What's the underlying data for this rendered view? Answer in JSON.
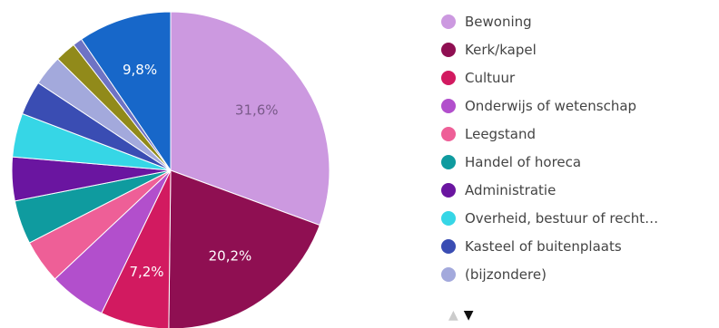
{
  "chart_data": {
    "type": "pie",
    "start_angle_deg": 0,
    "direction": "clockwise",
    "slices": [
      {
        "label": "Bewoning",
        "value": 31.6,
        "color": "#cc99e0",
        "data_label": "31,6%",
        "label_color": "#7a5a8a"
      },
      {
        "label": "Kerk/kapel",
        "value": 20.2,
        "color": "#8f0f52",
        "data_label": "20,2%",
        "label_color": "#ffffff"
      },
      {
        "label": "Cultuur",
        "value": 7.2,
        "color": "#d21a60",
        "data_label": "7,2%",
        "label_color": "#ffffff"
      },
      {
        "label": "Onderwijs of wetenschap",
        "value": 6.0,
        "color": "#b24fcc",
        "data_label": ""
      },
      {
        "label": "Leegstand",
        "value": 4.6,
        "color": "#ee5f97",
        "data_label": ""
      },
      {
        "label": "Handel of horeca",
        "value": 4.6,
        "color": "#0f9b9f",
        "data_label": ""
      },
      {
        "label": "Administratie",
        "value": 4.6,
        "color": "#6a15a0",
        "data_label": ""
      },
      {
        "label": "Overheid, bestuur of recht…",
        "value": 4.6,
        "color": "#36d6e6",
        "data_label": ""
      },
      {
        "label": "Kasteel of buitenplaats",
        "value": 3.6,
        "color": "#3a4db3",
        "data_label": ""
      },
      {
        "label": "(bijzondere)",
        "value": 3.2,
        "color": "#a3a9dc",
        "data_label": ""
      },
      {
        "label": "",
        "value": 2.2,
        "color": "#918a1a",
        "data_label": ""
      },
      {
        "label": "",
        "value": 1.0,
        "color": "#6e73c4",
        "data_label": ""
      },
      {
        "label": "",
        "value": 9.8,
        "color": "#1767c9",
        "data_label": "9,8%",
        "label_color": "#ffffff"
      }
    ]
  },
  "legend": {
    "items": [
      {
        "label": "Bewoning",
        "color": "#cc99e0"
      },
      {
        "label": "Kerk/kapel",
        "color": "#8f0f52"
      },
      {
        "label": "Cultuur",
        "color": "#d21a60"
      },
      {
        "label": "Onderwijs of wetenschap",
        "color": "#b24fcc"
      },
      {
        "label": "Leegstand",
        "color": "#ee5f97"
      },
      {
        "label": "Handel of horeca",
        "color": "#0f9b9f"
      },
      {
        "label": "Administratie",
        "color": "#6a15a0"
      },
      {
        "label": "Overheid, bestuur of recht…",
        "color": "#36d6e6"
      },
      {
        "label": "Kasteel of buitenplaats",
        "color": "#3a4db3"
      },
      {
        "label": "(bijzondere)",
        "color": "#a3a9dc"
      }
    ],
    "nav_up": "▲",
    "nav_down": "▼"
  }
}
